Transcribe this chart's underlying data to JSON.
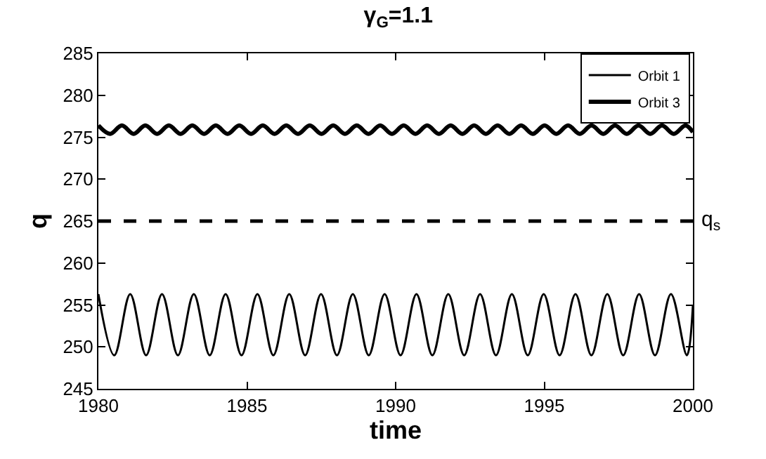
{
  "chart_data": {
    "type": "line",
    "title": "γ$_{G}$=1.1",
    "xlabel": "time",
    "ylabel": "q",
    "xlim": [
      1980,
      2000
    ],
    "xticks": [
      1980,
      1985,
      1990,
      1995,
      2000
    ],
    "ylim": [
      245,
      285
    ],
    "yticks": [
      245,
      250,
      255,
      260,
      265,
      270,
      275,
      280,
      285
    ],
    "grid": false,
    "legend": "top right",
    "line_style": "solid",
    "marker": "none",
    "ref_lines": [
      {
        "axis": "y",
        "value": 265,
        "label": "q$_{s}$",
        "line_style": "dashed",
        "color": "#000000"
      }
    ],
    "series": [
      {
        "name": "Orbit 1",
        "color": "#000000",
        "x": [
          1980,
          1980.535,
          1981.07,
          1981.605,
          1982.14,
          1982.675,
          1983.21,
          1983.745,
          1984.28,
          1984.815,
          1985.35,
          1985.885,
          1986.42,
          1986.955,
          1987.49,
          1988.025,
          1988.56,
          1989.095,
          1989.63,
          1990.165,
          1990.7,
          1991.235,
          1991.77,
          1992.305,
          1992.84,
          1993.375,
          1993.91,
          1994.445,
          1994.98,
          1995.515,
          1996.05,
          1996.585,
          1997.12,
          1997.655,
          1998.19,
          1998.725,
          1999.26,
          1999.795,
          2000
        ],
        "values": [
          256.3,
          249,
          256.3,
          249,
          256.3,
          249,
          256.3,
          249,
          256.3,
          249,
          256.3,
          249,
          256.3,
          249,
          256.3,
          249,
          256.3,
          249,
          256.3,
          249,
          256.3,
          249,
          256.3,
          249,
          256.3,
          249,
          256.3,
          249,
          256.3,
          249,
          256.3,
          249,
          256.3,
          249,
          256.3,
          249,
          256.3,
          249,
          255
        ]
      },
      {
        "name": "Orbit 3",
        "color": "#000000",
        "x": [
          1980,
          1980.395,
          1980.79,
          1981.185,
          1981.58,
          1981.975,
          1982.37,
          1982.765,
          1983.16,
          1983.555,
          1983.95,
          1984.345,
          1984.74,
          1985.135,
          1985.53,
          1985.925,
          1986.32,
          1986.715,
          1987.11,
          1987.505,
          1987.9,
          1988.295,
          1988.69,
          1989.085,
          1989.48,
          1989.875,
          1990.27,
          1990.665,
          1991.06,
          1991.455,
          1991.85,
          1992.245,
          1992.64,
          1993.035,
          1993.43,
          1993.825,
          1994.22,
          1994.615,
          1995.01,
          1995.405,
          1995.8,
          1996.195,
          1996.59,
          1996.985,
          1997.38,
          1997.775,
          1998.17,
          1998.565,
          1998.96,
          1999.355,
          1999.75,
          2000
        ],
        "values": [
          276.4,
          275.4,
          276.4,
          275.4,
          276.4,
          275.4,
          276.4,
          275.4,
          276.4,
          275.4,
          276.4,
          275.4,
          276.4,
          275.4,
          276.4,
          275.4,
          276.4,
          275.4,
          276.4,
          275.4,
          276.4,
          275.4,
          276.4,
          275.4,
          276.4,
          275.4,
          276.4,
          275.4,
          276.4,
          275.4,
          276.4,
          275.4,
          276.4,
          275.4,
          276.4,
          275.4,
          276.4,
          275.4,
          276.4,
          275.4,
          276.4,
          275.4,
          276.4,
          275.4,
          276.4,
          275.4,
          276.4,
          275.4,
          276.4,
          275.4,
          276.4,
          275.6
        ]
      }
    ]
  }
}
